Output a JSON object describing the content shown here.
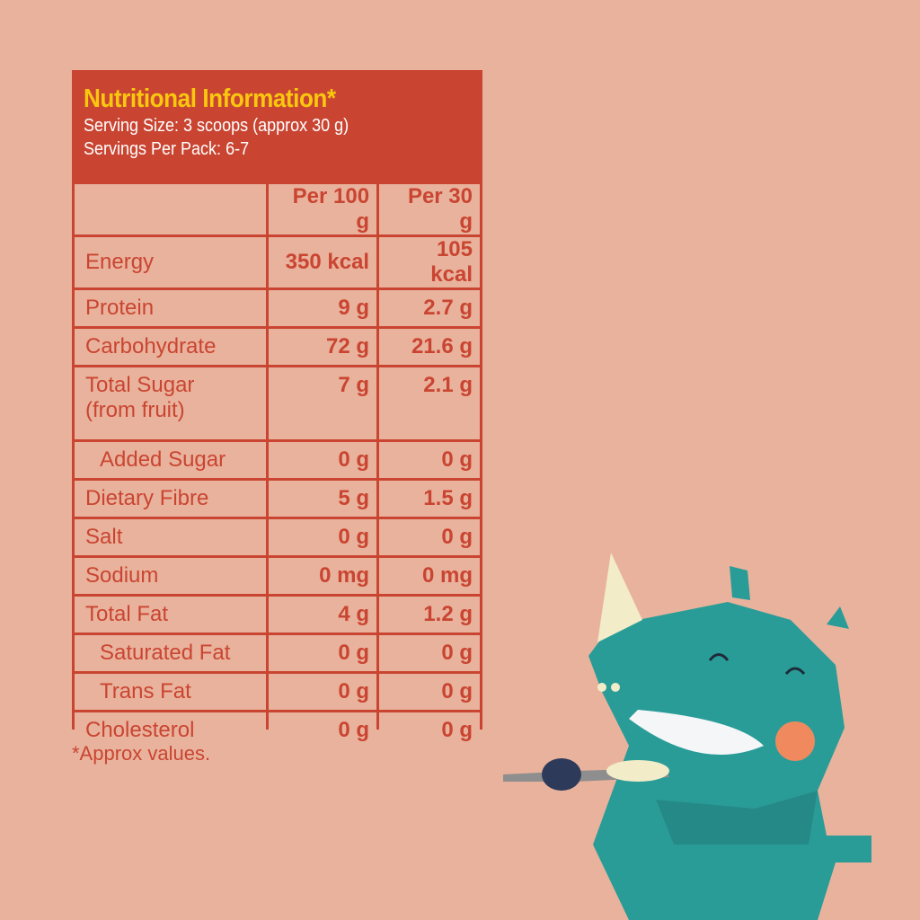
{
  "header": {
    "title": "Nutritional Information*",
    "serving_size": "Serving Size: 3 scoops (approx 30 g)",
    "servings_per_pack": "Servings Per Pack: 6-7"
  },
  "columns": [
    "",
    "Per 100 g",
    "Per 30 g"
  ],
  "rows": [
    {
      "label": "Energy",
      "per100": "350 kcal",
      "per30": "105 kcal"
    },
    {
      "label": "Protein",
      "per100": "9 g",
      "per30": "2.7 g"
    },
    {
      "label": "Carbohydrate",
      "per100": "72 g",
      "per30": "21.6 g"
    },
    {
      "label": "Total Sugar",
      "label2": "(from fruit)",
      "per100": "7 g",
      "per30": "2.1 g"
    },
    {
      "label": "Added Sugar",
      "per100": "0 g",
      "per30": "0 g"
    },
    {
      "label": "Dietary Fibre",
      "per100": "5 g",
      "per30": "1.5 g"
    },
    {
      "label": "Salt",
      "per100": "0 g",
      "per30": "0 g"
    },
    {
      "label": "Sodium",
      "per100": "0 mg",
      "per30": "0 mg"
    },
    {
      "label": "Total Fat",
      "per100": "4 g",
      "per30": "1.2 g"
    },
    {
      "label": "Saturated Fat",
      "per100": "0 g",
      "per30": "0 g"
    },
    {
      "label": "Trans Fat",
      "per100": "0 g",
      "per30": "0 g"
    },
    {
      "label": "Cholesterol",
      "per100": "0 g",
      "per30": "0 g"
    }
  ],
  "footnote": "*Approx values.",
  "colors": {
    "background": "#e9b29c",
    "panel": "#c94532",
    "title": "#f9c80e",
    "rhino": "#2a9c98"
  },
  "illustration": "rhino-mascot-with-spoon"
}
